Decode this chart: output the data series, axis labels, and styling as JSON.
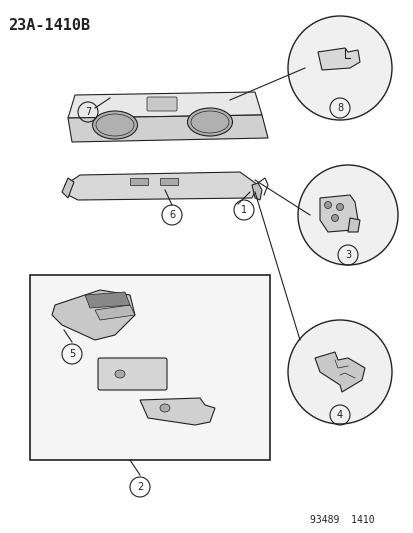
{
  "title": "23A-1410B",
  "footer": "93489  1410",
  "bg_color": "#ffffff",
  "part_numbers": [
    1,
    2,
    3,
    4,
    5,
    6,
    7,
    8
  ],
  "figsize": [
    4.14,
    5.33
  ],
  "dpi": 100
}
